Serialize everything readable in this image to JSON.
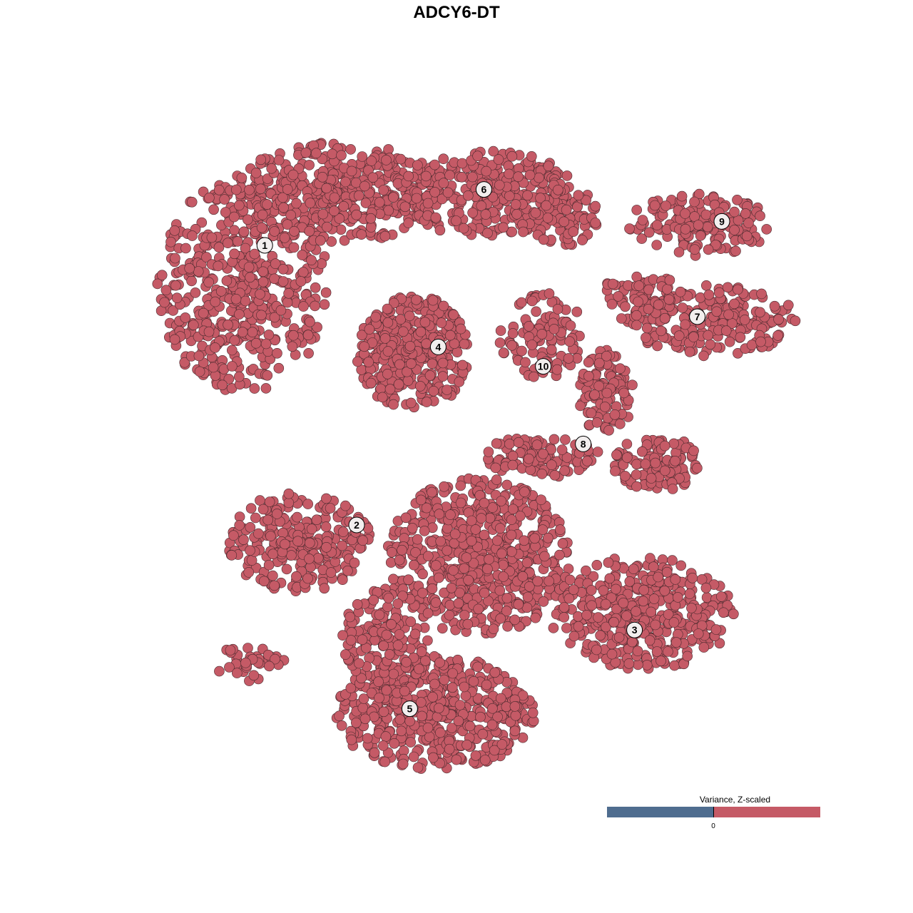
{
  "chart_data": {
    "type": "scatter",
    "title": "ADCY6-DT",
    "xlabel": "",
    "ylabel": "",
    "grid": false,
    "axes_visible": false,
    "point_color": "#c55a66",
    "point_stroke": "#4a2a2e",
    "legend": {
      "title": "Variance, Z-scaled",
      "position": "bottom-right",
      "low_color": "#4f6d8f",
      "high_color": "#c55a66",
      "tick_label": "0"
    },
    "cluster_labels": [
      {
        "label": "1",
        "x": -16.8,
        "y": 18.5
      },
      {
        "label": "2",
        "x": -8.75,
        "y": -6.0
      },
      {
        "label": "3",
        "x": 15.6,
        "y": -15.2
      },
      {
        "label": "4",
        "x": -1.6,
        "y": 9.6
      },
      {
        "label": "5",
        "x": -4.1,
        "y": -22.1
      },
      {
        "label": "6",
        "x": 2.4,
        "y": 23.4
      },
      {
        "label": "7",
        "x": 21.1,
        "y": 12.25
      },
      {
        "label": "8",
        "x": 11.1,
        "y": 1.1
      },
      {
        "label": "9",
        "x": 23.25,
        "y": 20.6
      },
      {
        "label": "10",
        "x": 7.6,
        "y": 7.9
      }
    ],
    "point_regions": [
      {
        "cluster": "1",
        "cx": -18.75,
        "cy": 15,
        "rx": 7.5,
        "ry": 9.4,
        "n": 500
      },
      {
        "cluster": "1",
        "cx": -10.6,
        "cy": 23.1,
        "rx": 9.4,
        "ry": 4.4,
        "n": 400
      },
      {
        "cluster": "6",
        "cx": 2.5,
        "cy": 23.1,
        "rx": 8.1,
        "ry": 3.75,
        "n": 300
      },
      {
        "cluster": "6",
        "cx": 8.75,
        "cy": 21.25,
        "rx": 3.75,
        "ry": 3.1,
        "n": 100
      },
      {
        "cluster": "4",
        "cx": -3.75,
        "cy": 9.1,
        "rx": 5,
        "ry": 5,
        "n": 350
      },
      {
        "cluster": "10",
        "cx": 7.5,
        "cy": 10.6,
        "rx": 3.75,
        "ry": 3.75,
        "n": 100
      },
      {
        "cluster": "9",
        "cx": 21.25,
        "cy": 20.3,
        "rx": 6.25,
        "ry": 2.8,
        "n": 150
      },
      {
        "cluster": "7",
        "cx": 22.5,
        "cy": 11.9,
        "rx": 7.5,
        "ry": 3.1,
        "n": 200
      },
      {
        "cluster": "7",
        "cx": 16.25,
        "cy": 13.75,
        "rx": 3.75,
        "ry": 2.5,
        "n": 80
      },
      {
        "cluster": "8",
        "cx": 13.1,
        "cy": 5.6,
        "rx": 2.5,
        "ry": 3.75,
        "n": 100
      },
      {
        "cluster": "8",
        "cx": 17.5,
        "cy": -0.6,
        "rx": 3.75,
        "ry": 2.5,
        "n": 120
      },
      {
        "cluster": "8",
        "cx": 7.5,
        "cy": 0,
        "rx": 5,
        "ry": 1.9,
        "n": 100
      },
      {
        "cluster": "2",
        "cx": -13.75,
        "cy": -7.5,
        "rx": 6.25,
        "ry": 4.4,
        "n": 250
      },
      {
        "cluster": "2",
        "cx": -18.1,
        "cy": -18.1,
        "rx": 3.1,
        "ry": 1.6,
        "n": 40
      },
      {
        "cluster": "5",
        "cx": 1.9,
        "cy": -8.75,
        "rx": 8.1,
        "ry": 6.9,
        "n": 600
      },
      {
        "cluster": "3",
        "cx": 16.25,
        "cy": -13.75,
        "rx": 8.1,
        "ry": 5,
        "n": 400
      },
      {
        "cluster": "5",
        "cx": -1.9,
        "cy": -22.5,
        "rx": 8.75,
        "ry": 5,
        "n": 500
      },
      {
        "cluster": "5",
        "cx": -6.25,
        "cy": -16.25,
        "rx": 3.75,
        "ry": 5,
        "n": 150
      }
    ]
  }
}
